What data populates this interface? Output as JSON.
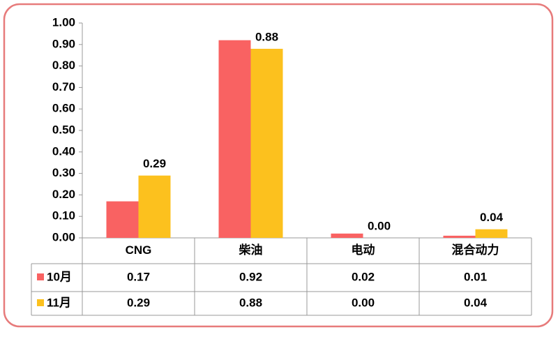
{
  "chart_data": {
    "type": "bar",
    "categories": [
      "CNG",
      "柴油",
      "电动",
      "混合动力"
    ],
    "series": [
      {
        "name": "10月",
        "color": "#f96262",
        "values": [
          0.17,
          0.92,
          0.02,
          0.01
        ],
        "value_labels": [
          "0.17",
          "0.92",
          "0.02",
          "0.01"
        ]
      },
      {
        "name": "11月",
        "color": "#fcc11e",
        "values": [
          0.29,
          0.88,
          0.0,
          0.04
        ],
        "value_labels": [
          "0.29",
          "0.88",
          "0.00",
          "0.04"
        ]
      }
    ],
    "ylim": [
      0,
      1
    ],
    "yticks": [
      {
        "value": 0,
        "label": "0.00"
      },
      {
        "value": 0.1,
        "label": "0.10"
      },
      {
        "value": 0.2,
        "label": "0.20"
      },
      {
        "value": 0.3,
        "label": "0.30"
      },
      {
        "value": 0.4,
        "label": "0.40"
      },
      {
        "value": 0.5,
        "label": "0.50"
      },
      {
        "value": 0.6,
        "label": "0.60"
      },
      {
        "value": 0.7,
        "label": "0.70"
      },
      {
        "value": 0.8,
        "label": "0.80"
      },
      {
        "value": 0.9,
        "label": "0.90"
      },
      {
        "value": 1,
        "label": "1.00"
      }
    ]
  }
}
